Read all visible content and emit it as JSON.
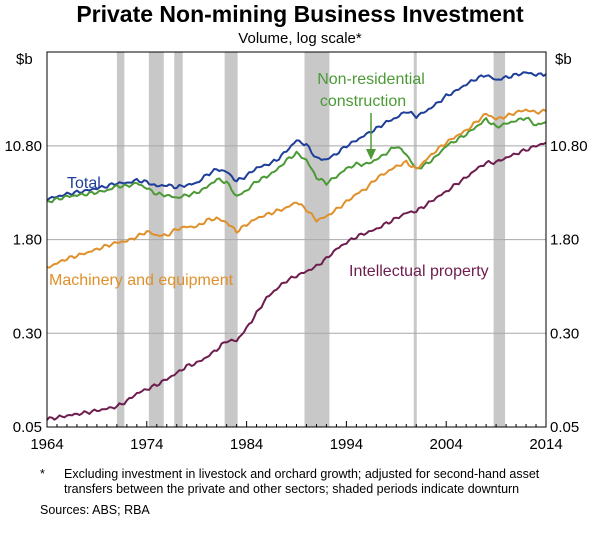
{
  "chart_data": {
    "type": "line",
    "title": "Private Non-mining Business Investment",
    "subtitle": "Volume, log scale*",
    "ylabel_left": "$b",
    "ylabel_right": "$b",
    "yscale": "log",
    "ylim": [
      0.05,
      65
    ],
    "yticks": [
      0.05,
      0.3,
      1.8,
      10.8
    ],
    "ytick_labels": [
      "0.05",
      "0.30",
      "1.80",
      "10.80"
    ],
    "xlim": [
      1964,
      2014
    ],
    "xticks": [
      1964,
      1974,
      1984,
      1994,
      2004,
      2014
    ],
    "xtick_labels": [
      "1964",
      "1974",
      "1984",
      "1994",
      "2004",
      "2014"
    ],
    "downturns": [
      [
        1971.0,
        1971.75
      ],
      [
        1974.2,
        1975.7
      ],
      [
        1976.75,
        1977.6
      ],
      [
        1981.8,
        1983.1
      ],
      [
        1989.8,
        1992.3
      ],
      [
        2000.75,
        2001.0
      ],
      [
        2008.75,
        2009.9
      ]
    ],
    "series": [
      {
        "name": "Total",
        "color": "#1f3e99",
        "x": [
          1964,
          1966,
          1968,
          1970,
          1971,
          1972,
          1973,
          1974,
          1975,
          1976,
          1977,
          1978,
          1979,
          1980,
          1981,
          1982,
          1983,
          1984,
          1985,
          1986,
          1987,
          1988,
          1989,
          1990,
          1991,
          1992,
          1993,
          1994,
          1995,
          1996,
          1997,
          1998,
          1999,
          2000,
          2001,
          2002,
          2003,
          2004,
          2005,
          2006,
          2007,
          2008,
          2009,
          2010,
          2011,
          2012,
          2013,
          2014
        ],
        "values": [
          3.9,
          4.3,
          4.6,
          5.0,
          5.3,
          5.3,
          5.6,
          5.4,
          5.0,
          5.1,
          4.9,
          5.1,
          5.3,
          6.2,
          6.9,
          6.6,
          5.5,
          6.1,
          7.1,
          7.5,
          8.2,
          9.8,
          12.0,
          11.0,
          8.5,
          8.3,
          9.3,
          10.8,
          12.0,
          13.5,
          15.0,
          17.0,
          18.5,
          21.0,
          19.0,
          21.0,
          24.0,
          28.0,
          31.0,
          35.0,
          39.0,
          42.0,
          38.0,
          40.0,
          42.0,
          44.0,
          42.0,
          42.5
        ]
      },
      {
        "name": "Non-residential construction",
        "color": "#4c9a36",
        "x": [
          1964,
          1966,
          1968,
          1970,
          1971,
          1972,
          1973,
          1974,
          1975,
          1976,
          1977,
          1978,
          1979,
          1980,
          1981,
          1982,
          1983,
          1984,
          1985,
          1986,
          1987,
          1988,
          1989,
          1990,
          1991,
          1992,
          1993,
          1994,
          1995,
          1996,
          1997,
          1998,
          1999,
          2000,
          2001,
          2002,
          2003,
          2004,
          2005,
          2006,
          2007,
          2008,
          2009,
          2010,
          2011,
          2012,
          2013,
          2014
        ],
        "values": [
          3.7,
          4.1,
          4.3,
          4.6,
          5.0,
          5.0,
          5.3,
          4.8,
          4.3,
          4.2,
          4.0,
          4.2,
          4.4,
          4.9,
          5.7,
          5.4,
          4.1,
          4.6,
          5.5,
          6.0,
          6.8,
          8.2,
          9.4,
          8.2,
          5.9,
          5.3,
          6.0,
          7.0,
          7.6,
          7.6,
          8.3,
          9.4,
          10.8,
          9.2,
          6.9,
          7.6,
          8.8,
          10.8,
          12.0,
          13.5,
          15.5,
          18.0,
          15.5,
          16.5,
          17.5,
          18.5,
          16.0,
          17.0
        ]
      },
      {
        "name": "Machinery and equipment",
        "color": "#e0902a",
        "x": [
          1964,
          1966,
          1968,
          1970,
          1971,
          1972,
          1973,
          1974,
          1975,
          1976,
          1977,
          1978,
          1979,
          1980,
          1981,
          1982,
          1983,
          1984,
          1985,
          1986,
          1987,
          1988,
          1989,
          1990,
          1991,
          1992,
          1993,
          1994,
          1995,
          1996,
          1997,
          1998,
          1999,
          2000,
          2001,
          2002,
          2003,
          2004,
          2005,
          2006,
          2007,
          2008,
          2009,
          2010,
          2011,
          2012,
          2013,
          2014
        ],
        "values": [
          1.05,
          1.25,
          1.4,
          1.6,
          1.7,
          1.75,
          1.9,
          2.1,
          1.95,
          1.95,
          2.2,
          2.3,
          2.3,
          2.6,
          2.7,
          2.5,
          2.1,
          2.4,
          2.7,
          2.9,
          3.1,
          3.3,
          3.7,
          3.2,
          2.6,
          2.8,
          3.2,
          3.7,
          4.3,
          4.8,
          5.8,
          6.5,
          7.3,
          7.9,
          6.9,
          8.3,
          9.9,
          11.5,
          13.0,
          14.5,
          17.0,
          20.0,
          18.0,
          19.0,
          20.5,
          21.5,
          20.5,
          21.0
        ]
      },
      {
        "name": "Intellectual property",
        "color": "#6e1d4f",
        "x": [
          1964,
          1966,
          1968,
          1970,
          1971,
          1972,
          1973,
          1974,
          1975,
          1976,
          1977,
          1978,
          1979,
          1980,
          1981,
          1982,
          1983,
          1984,
          1985,
          1986,
          1987,
          1988,
          1989,
          1990,
          1991,
          1992,
          1993,
          1994,
          1995,
          1996,
          1997,
          1998,
          1999,
          2000,
          2001,
          2002,
          2003,
          2004,
          2005,
          2006,
          2007,
          2008,
          2009,
          2010,
          2011,
          2012,
          2013,
          2014
        ],
        "values": [
          0.058,
          0.062,
          0.066,
          0.071,
          0.074,
          0.082,
          0.095,
          0.103,
          0.112,
          0.125,
          0.14,
          0.16,
          0.17,
          0.19,
          0.22,
          0.26,
          0.26,
          0.33,
          0.44,
          0.59,
          0.7,
          0.82,
          0.9,
          0.98,
          1.08,
          1.25,
          1.5,
          1.7,
          1.9,
          2.05,
          2.2,
          2.45,
          2.7,
          3.0,
          3.1,
          3.5,
          4.0,
          4.5,
          5.2,
          5.9,
          6.9,
          7.8,
          7.9,
          8.6,
          9.3,
          10.0,
          10.8,
          11.5
        ]
      }
    ],
    "annotations": [
      {
        "text": "Total",
        "series": "Total"
      },
      {
        "text": "Non-residential",
        "series": "Non-residential construction"
      },
      {
        "text": "construction",
        "series": "Non-residential construction"
      },
      {
        "text": "Machinery and equipment",
        "series": "Machinery and equipment"
      },
      {
        "text": "Intellectual property",
        "series": "Intellectual property"
      }
    ]
  },
  "footnote": {
    "mark": "*",
    "text": "Excluding investment in livestock and orchard growth; adjusted for second-hand asset transfers between the private and other sectors; shaded periods indicate downturn"
  },
  "sources": "Sources:   ABS; RBA"
}
